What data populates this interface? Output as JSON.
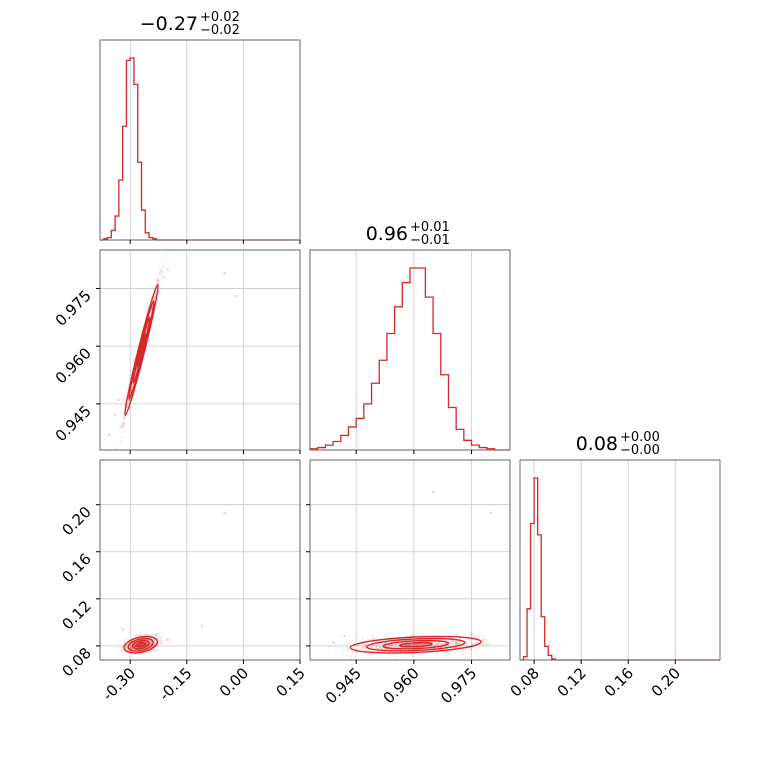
{
  "chart_data": {
    "type": "corner",
    "series_color": "#d62728",
    "grid": true,
    "params": [
      {
        "range": [
          -0.38,
          0.15
        ],
        "ticks": [
          "-0.30",
          "-0.15",
          "0.00",
          "0.15"
        ],
        "tick_values": [
          -0.3,
          -0.15,
          0.0,
          0.15
        ],
        "title": {
          "median": "−0.27",
          "plus": "+0.02",
          "minus": "−0.02"
        }
      },
      {
        "range": [
          0.933,
          0.985
        ],
        "ticks": [
          "0.945",
          "0.960",
          "0.975"
        ],
        "tick_values": [
          0.945,
          0.96,
          0.975
        ],
        "title": {
          "median": "0.96",
          "plus": "+0.01",
          "minus": "−0.01"
        }
      },
      {
        "range": [
          0.068,
          0.238
        ],
        "ticks": [
          "0.08",
          "0.12",
          "0.16",
          "0.20"
        ],
        "tick_values": [
          0.08,
          0.12,
          0.16,
          0.2
        ],
        "title": {
          "median": "0.08",
          "plus": "+0.00",
          "minus": "−0.00"
        }
      }
    ],
    "histograms": [
      {
        "param": 0,
        "bin_edges": [
          -0.38,
          -0.37,
          -0.36,
          -0.35,
          -0.34,
          -0.33,
          -0.32,
          -0.31,
          -0.3,
          -0.29,
          -0.28,
          -0.27,
          -0.26,
          -0.25,
          -0.24,
          -0.23,
          -0.22,
          -0.21,
          -0.2
        ],
        "counts": [
          0,
          1,
          2,
          8,
          20,
          50,
          95,
          150,
          152,
          130,
          65,
          25,
          6,
          2,
          1,
          0,
          0,
          0
        ]
      },
      {
        "param": 1,
        "bin_edges": [
          0.933,
          0.935,
          0.937,
          0.939,
          0.941,
          0.943,
          0.945,
          0.947,
          0.949,
          0.951,
          0.953,
          0.955,
          0.957,
          0.959,
          0.961,
          0.963,
          0.965,
          0.967,
          0.969,
          0.971,
          0.973,
          0.975,
          0.977,
          0.979,
          0.981
        ],
        "counts": [
          1,
          2,
          4,
          7,
          12,
          19,
          26,
          38,
          55,
          74,
          96,
          118,
          138,
          150,
          150,
          126,
          96,
          62,
          35,
          17,
          8,
          4,
          2,
          1
        ]
      },
      {
        "param": 2,
        "bin_edges": [
          0.068,
          0.071,
          0.074,
          0.077,
          0.08,
          0.083,
          0.086,
          0.089,
          0.092,
          0.095,
          0.098,
          0.101
        ],
        "counts": [
          0,
          3,
          45,
          120,
          160,
          110,
          38,
          12,
          4,
          1,
          0
        ]
      }
    ],
    "pairs": [
      {
        "x_param": 0,
        "y_param": 1,
        "center": [
          -0.27,
          0.959
        ],
        "sigma": [
          0.022,
          0.0085
        ],
        "rho": 0.98,
        "cloud": [
          [
            -0.355,
            0.937
          ],
          [
            -0.34,
            0.942
          ],
          [
            -0.33,
            0.946
          ],
          [
            -0.21,
            0.978
          ],
          [
            -0.2,
            0.98
          ],
          [
            -0.225,
            0.974
          ],
          [
            -0.05,
            0.979
          ],
          [
            -0.02,
            0.973
          ]
        ]
      },
      {
        "x_param": 0,
        "y_param": 2,
        "center": [
          -0.272,
          0.081
        ],
        "sigma": [
          0.022,
          0.0035
        ],
        "rho": 0.35,
        "cloud": [
          [
            -0.32,
            0.094
          ],
          [
            -0.23,
            0.09
          ],
          [
            -0.2,
            0.085
          ],
          [
            -0.11,
            0.097
          ],
          [
            -0.05,
            0.193
          ]
        ]
      },
      {
        "x_param": 1,
        "y_param": 2,
        "center": [
          0.9605,
          0.081
        ],
        "sigma": [
          0.0085,
          0.0035
        ],
        "rho": 0.35,
        "cloud": [
          [
            0.939,
            0.083
          ],
          [
            0.942,
            0.088
          ],
          [
            0.975,
            0.09
          ],
          [
            0.978,
            0.084
          ],
          [
            0.965,
            0.211
          ],
          [
            0.98,
            0.193
          ]
        ]
      }
    ],
    "contour_levels": [
      0.5,
      1.0,
      1.5,
      2.0
    ]
  }
}
